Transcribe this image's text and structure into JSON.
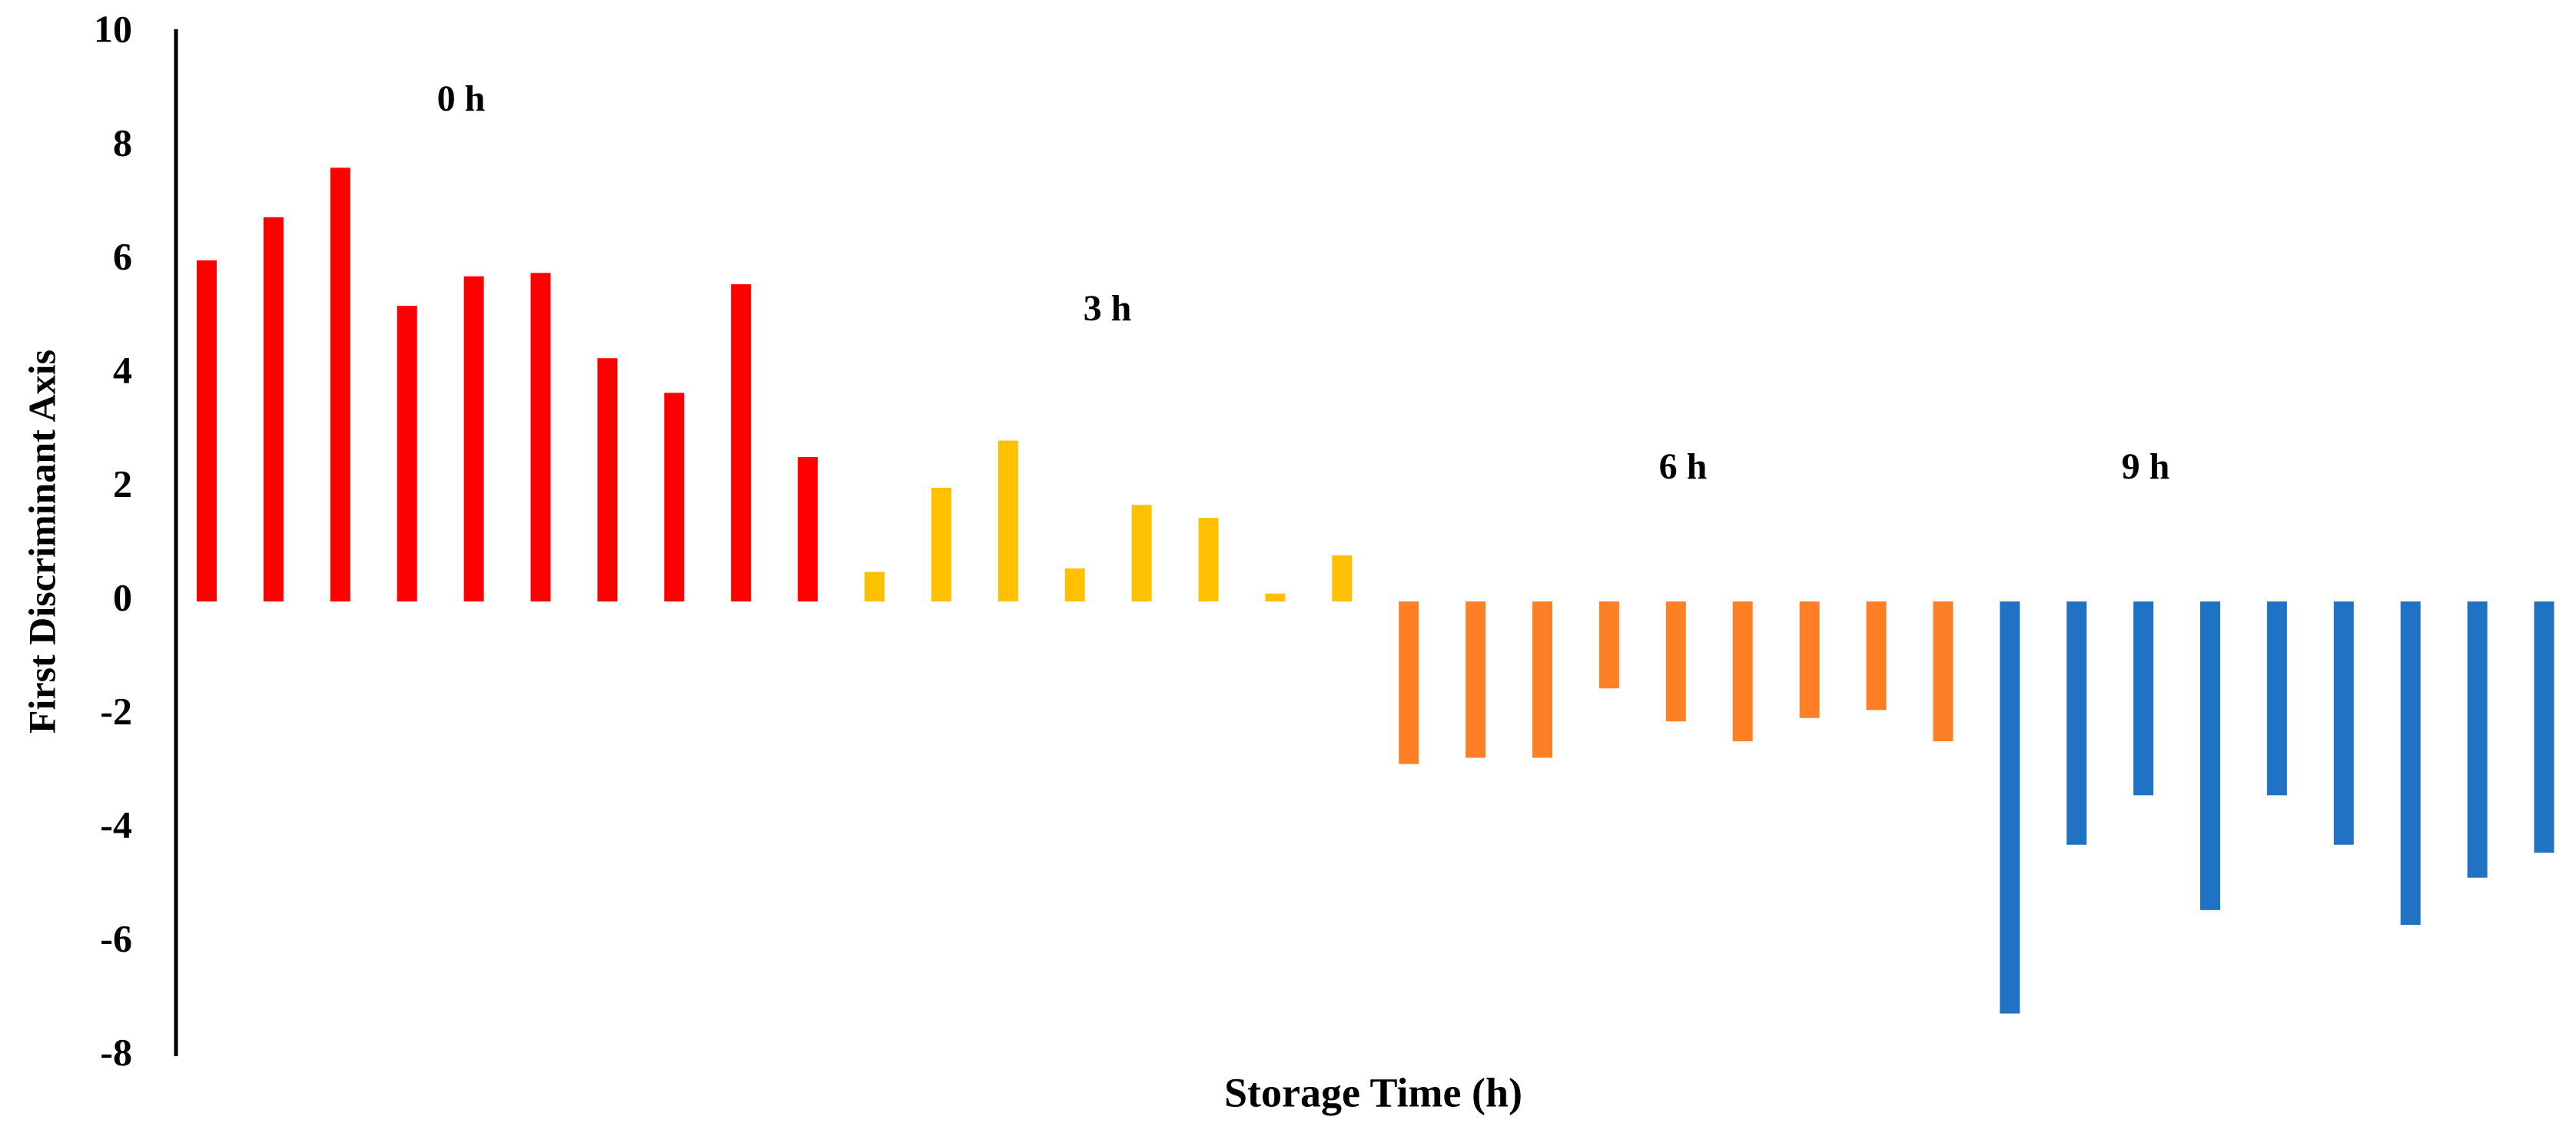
{
  "chart_data": {
    "type": "bar",
    "y_label": "First Discriminant Axis",
    "x_label": "Storage Time (h)",
    "ylim": [
      -8,
      10
    ],
    "yticks": [
      -8,
      -6,
      -4,
      -2,
      0,
      2,
      4,
      6,
      8,
      10
    ],
    "series": [
      {
        "name": "0 h",
        "color": "#ff0000",
        "values": [
          6.0,
          6.76,
          7.63,
          5.2,
          5.72,
          5.78,
          4.28,
          3.67,
          5.58,
          2.54
        ]
      },
      {
        "name": "3 h",
        "color": "#ffc000",
        "values": [
          0.52,
          2.0,
          2.83,
          0.58,
          1.7,
          1.47,
          0.14,
          0.81
        ]
      },
      {
        "name": "6 h",
        "color": "#ff7f27",
        "values": [
          -2.86,
          -2.75,
          -2.75,
          -1.53,
          -2.11,
          -2.46,
          -2.05,
          -1.91,
          -2.46
        ]
      },
      {
        "name": "9 h",
        "color": "#1f72c4",
        "values": [
          -7.25,
          -4.28,
          -3.41,
          -5.43,
          -3.41,
          -4.28,
          -5.69,
          -4.86,
          -4.42
        ]
      }
    ]
  }
}
